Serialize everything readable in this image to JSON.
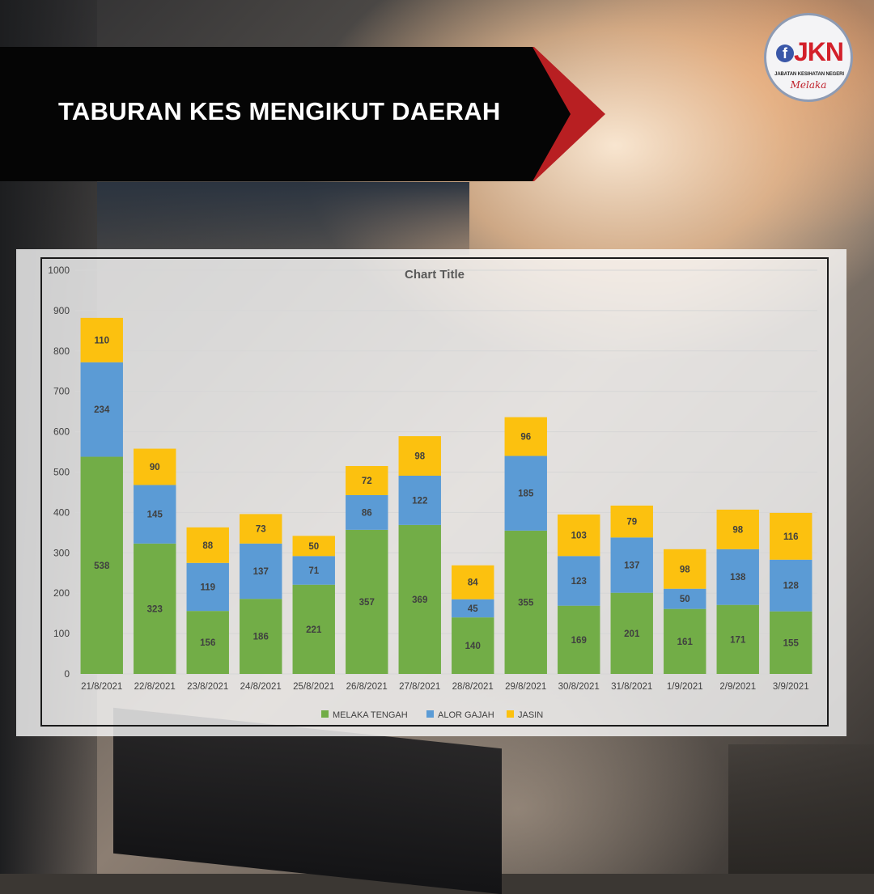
{
  "header": {
    "title": "TABURAN KES MENGIKUT DAERAH"
  },
  "logo": {
    "mark": "f",
    "letters": "JKN",
    "subtitle": "JABATAN KESIHATAN NEGERI",
    "script": "Melaka"
  },
  "colors": {
    "banner": "#050505",
    "accent": "#b81f22",
    "melaka_tengah": "#72ad47",
    "alor_gajah": "#5b9bd5",
    "jasin": "#fcc10f"
  },
  "chart_data": {
    "type": "bar",
    "stacked": true,
    "title": "Chart Title",
    "xlabel": "",
    "ylabel": "",
    "ylim": [
      0,
      1000
    ],
    "yticks": [
      0,
      100,
      200,
      300,
      400,
      500,
      600,
      700,
      800,
      900,
      1000
    ],
    "grid": true,
    "legend": "bottom",
    "categories": [
      "21/8/2021",
      "22/8/2021",
      "23/8/2021",
      "24/8/2021",
      "25/8/2021",
      "26/8/2021",
      "27/8/2021",
      "28/8/2021",
      "29/8/2021",
      "30/8/2021",
      "31/8/2021",
      "1/9/2021",
      "2/9/2021",
      "3/9/2021"
    ],
    "series": [
      {
        "name": "MELAKA TENGAH",
        "color": "#72ad47",
        "values": [
          538,
          323,
          156,
          186,
          221,
          357,
          369,
          140,
          355,
          169,
          201,
          161,
          171,
          155
        ]
      },
      {
        "name": "ALOR GAJAH",
        "color": "#5b9bd5",
        "values": [
          234,
          145,
          119,
          137,
          71,
          86,
          122,
          45,
          185,
          123,
          137,
          50,
          138,
          128
        ]
      },
      {
        "name": "JASIN",
        "color": "#fcc10f",
        "values": [
          110,
          90,
          88,
          73,
          50,
          72,
          98,
          84,
          96,
          103,
          79,
          98,
          98,
          116
        ]
      }
    ]
  }
}
